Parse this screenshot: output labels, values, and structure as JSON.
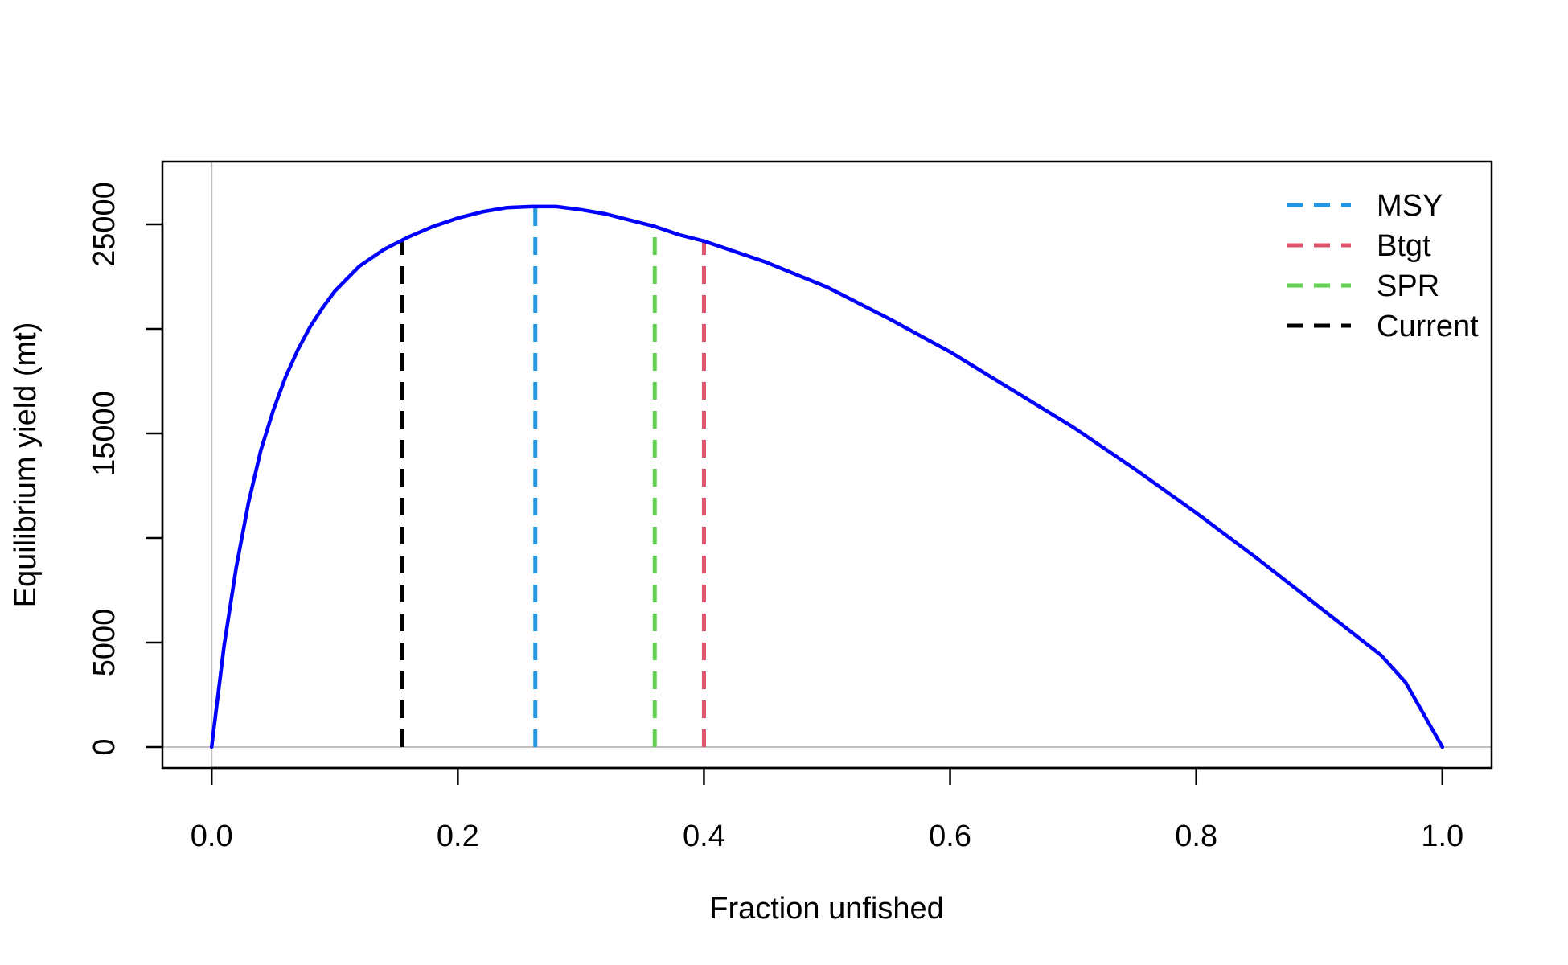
{
  "chart_data": {
    "type": "line",
    "title": "",
    "xlabel": "Fraction unfished",
    "ylabel": "Equilibrium yield (mt)",
    "xlim": [
      -0.04,
      1.04
    ],
    "ylim": [
      -1000,
      28000
    ],
    "x_ticks": [
      0.0,
      0.2,
      0.4,
      0.6,
      0.8,
      1.0
    ],
    "x_tick_labels": [
      "0.0",
      "0.2",
      "0.4",
      "0.6",
      "0.8",
      "1.0"
    ],
    "y_ticks": [
      0,
      5000,
      10000,
      15000,
      20000,
      25000
    ],
    "y_tick_labels": [
      "0",
      "5000",
      "",
      "15000",
      "",
      "25000"
    ],
    "grid": false,
    "reference_lines": {
      "x0": 0,
      "y0": 0,
      "color": "#bebebe"
    },
    "series": [
      {
        "color": "#0000ff",
        "x": [
          0.0,
          0.01,
          0.02,
          0.03,
          0.04,
          0.05,
          0.06,
          0.07,
          0.08,
          0.09,
          0.1,
          0.12,
          0.14,
          0.16,
          0.18,
          0.2,
          0.22,
          0.24,
          0.26,
          0.28,
          0.3,
          0.32,
          0.34,
          0.36,
          0.38,
          0.4,
          0.45,
          0.5,
          0.55,
          0.6,
          0.65,
          0.7,
          0.75,
          0.8,
          0.85,
          0.9,
          0.95,
          0.97,
          1.0
        ],
        "y": [
          0,
          4800,
          8600,
          11700,
          14200,
          16100,
          17700,
          19000,
          20100,
          21000,
          21800,
          23000,
          23800,
          24400,
          24900,
          25300,
          25600,
          25800,
          25850,
          25850,
          25700,
          25500,
          25200,
          24900,
          24500,
          24200,
          23200,
          22000,
          20500,
          18900,
          17100,
          15300,
          13300,
          11200,
          9000,
          6700,
          4400,
          3100,
          0
        ]
      }
    ],
    "vertical_lines": [
      {
        "name": "Current",
        "x": 0.155,
        "y": 24200,
        "color": "#000000"
      },
      {
        "name": "MSY",
        "x": 0.263,
        "y": 25850,
        "color": "#2297e6"
      },
      {
        "name": "SPR",
        "x": 0.36,
        "y": 24900,
        "color": "#61d04f"
      },
      {
        "name": "Btgt",
        "x": 0.4,
        "y": 24200,
        "color": "#df536b"
      }
    ],
    "legend": {
      "placement": "top-right",
      "entries": [
        {
          "label": "MSY",
          "color": "#2297e6"
        },
        {
          "label": "Btgt",
          "color": "#df536b"
        },
        {
          "label": "SPR",
          "color": "#61d04f"
        },
        {
          "label": "Current",
          "color": "#000000"
        }
      ]
    }
  }
}
